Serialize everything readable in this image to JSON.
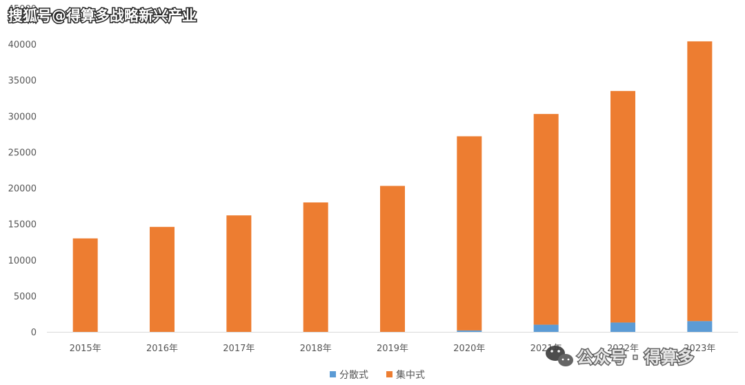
{
  "watermark": {
    "top_text": "搜狐号@得算多战略新兴产业",
    "bottom_text": "公众号 · 得算多",
    "icon": "wechat-icon"
  },
  "chart_data": {
    "type": "bar",
    "stacked": true,
    "categories": [
      "2015年",
      "2016年",
      "2017年",
      "2018年",
      "2019年",
      "2020年",
      "2021年",
      "2022年",
      "2023年"
    ],
    "series": [
      {
        "name": "分散式",
        "color": "#5b9bd5",
        "values": [
          0,
          0,
          0,
          0,
          0,
          200,
          1000,
          1300,
          1500
        ]
      },
      {
        "name": "集中式",
        "color": "#ed7d31",
        "values": [
          13000,
          14600,
          16200,
          18000,
          20300,
          27000,
          29300,
          32200,
          38900
        ]
      }
    ],
    "y_ticks": [
      0,
      5000,
      10000,
      15000,
      20000,
      25000,
      30000,
      35000,
      40000,
      45000
    ],
    "ylim": [
      0,
      45000
    ],
    "title": "",
    "xlabel": "",
    "ylabel": "",
    "grid": false,
    "legend_position": "bottom"
  }
}
